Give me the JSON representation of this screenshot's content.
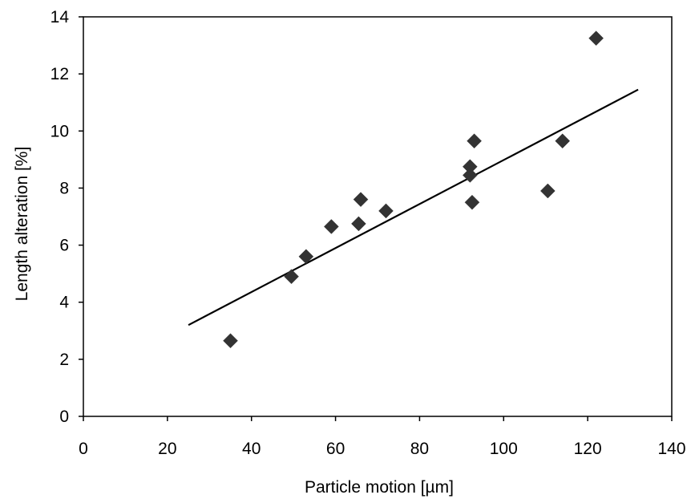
{
  "chart_data": {
    "type": "scatter",
    "title": "",
    "xlabel": "Particle motion [µm]",
    "ylabel": "Length alteration [%]",
    "xlim": [
      0,
      140
    ],
    "ylim": [
      0,
      14
    ],
    "x_ticks": [
      "0",
      "20",
      "40",
      "60",
      "80",
      "100",
      "120",
      "140"
    ],
    "y_ticks": [
      "0",
      "2",
      "4",
      "6",
      "8",
      "10",
      "12",
      "14"
    ],
    "grid": false,
    "legend": "none",
    "marker": "diamond",
    "marker_color": "#333333",
    "series": [
      {
        "points": [
          {
            "x": 35,
            "y": 2.65
          },
          {
            "x": 49.5,
            "y": 4.9
          },
          {
            "x": 53,
            "y": 5.6
          },
          {
            "x": 59,
            "y": 6.65
          },
          {
            "x": 65.5,
            "y": 6.75
          },
          {
            "x": 66,
            "y": 7.6
          },
          {
            "x": 72,
            "y": 7.2
          },
          {
            "x": 92,
            "y": 8.75
          },
          {
            "x": 92,
            "y": 8.45
          },
          {
            "x": 92.5,
            "y": 7.5
          },
          {
            "x": 93,
            "y": 9.65
          },
          {
            "x": 110.5,
            "y": 7.9
          },
          {
            "x": 114,
            "y": 9.65
          },
          {
            "x": 122,
            "y": 13.25
          }
        ]
      }
    ],
    "trendline": {
      "type": "linear",
      "color": "#000000",
      "x": [
        25,
        132
      ],
      "y": [
        3.2,
        11.45
      ]
    }
  }
}
